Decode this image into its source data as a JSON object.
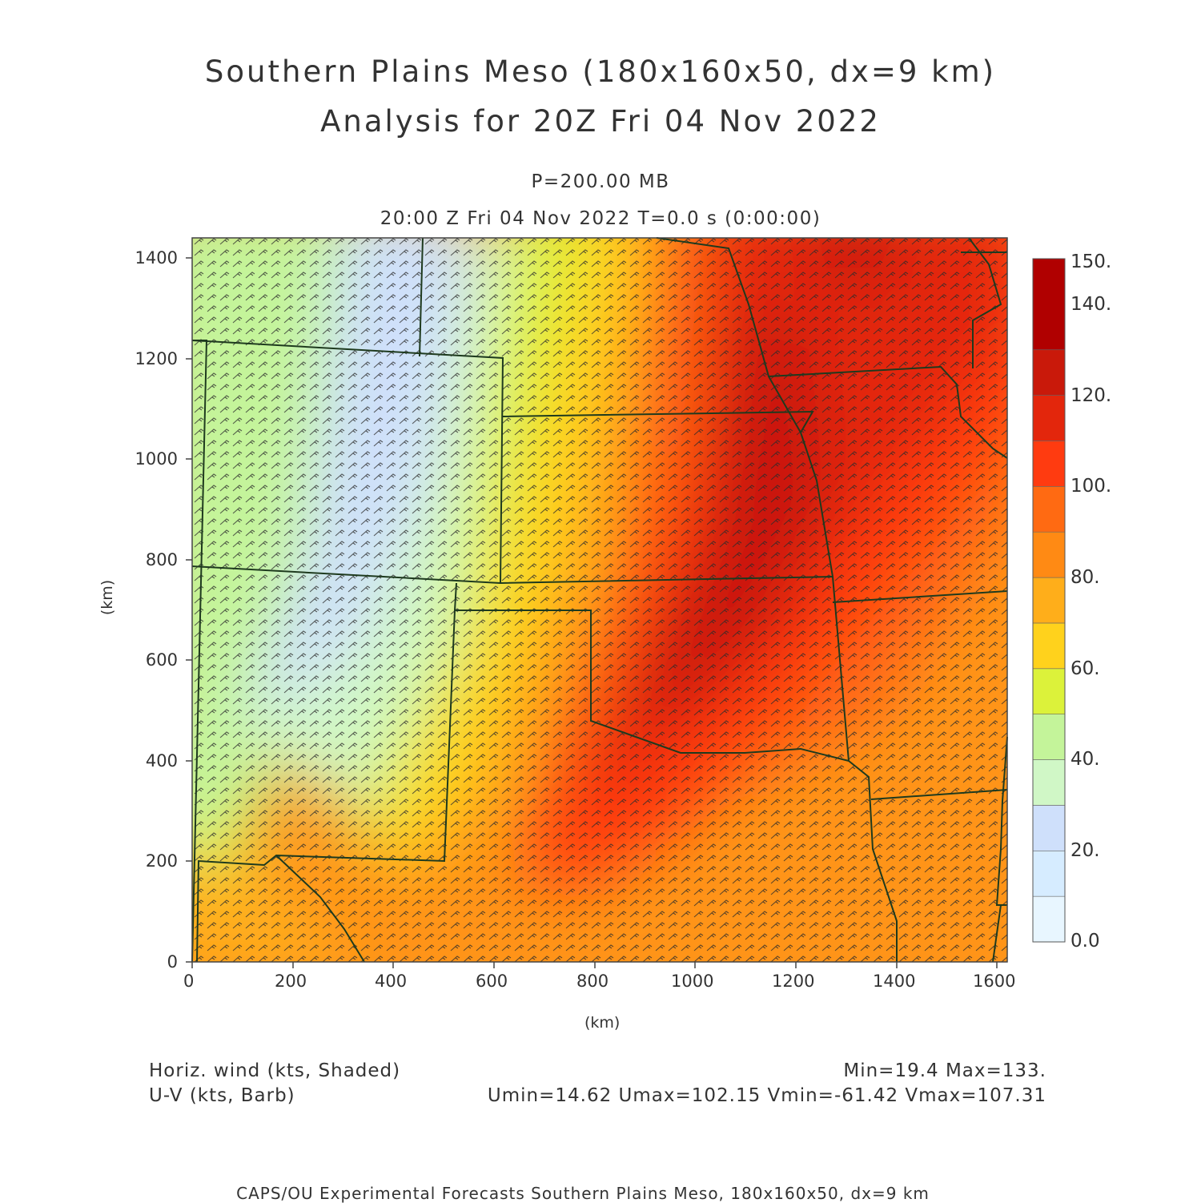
{
  "header": {
    "title_line1": "Southern Plains Meso (180x160x50, dx=9 km)",
    "title_line2": "Analysis for 20Z Fri 04 Nov 2022",
    "pressure": "P=200.00 MB",
    "valid_time": "20:00 Z Fri 04 Nov 2022    T=0.0 s (0:00:00)"
  },
  "axes": {
    "xlabel": "(km)",
    "ylabel": "(km)",
    "x_ticks": [
      "0",
      "200",
      "400",
      "600",
      "800",
      "1000",
      "1200",
      "1400",
      "1600"
    ],
    "y_ticks": [
      "0",
      "200",
      "400",
      "600",
      "800",
      "1000",
      "1200",
      "1400"
    ]
  },
  "colorbar": {
    "labels": [
      "0.0",
      "20.",
      "40.",
      "60.",
      "80.",
      "100.",
      "120.",
      "140.",
      "150."
    ],
    "colors": [
      "#e8f6ff",
      "#d6ecff",
      "#cfe0fb",
      "#d0f7c6",
      "#c4f49a",
      "#dcf23a",
      "#ffd21c",
      "#ffae1a",
      "#ff8a14",
      "#ff6a12",
      "#ff3b10",
      "#e3260c",
      "#c9190a",
      "#b00000"
    ]
  },
  "footer": {
    "left1": "Horiz. wind (kts, Shaded)",
    "left2": "U-V (kts, Barb)",
    "right1": "Min=19.4 Max=133.",
    "right2": "Umin=14.62 Umax=102.15 Vmin=-61.42 Vmax=107.31",
    "credit": "CAPS/OU Experimental Forecasts  Southern Plains Meso, 180x160x50, dx=9 km"
  }
}
